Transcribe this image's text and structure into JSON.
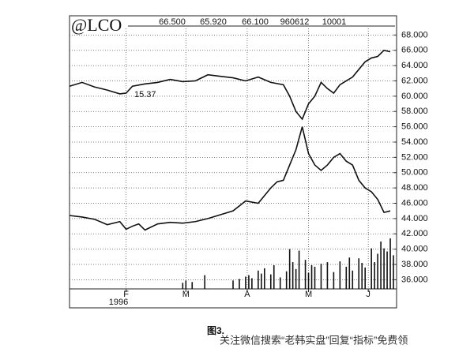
{
  "chart_data": {
    "type": "line",
    "title": "@LCO",
    "header": [
      "66.500",
      "65.920",
      "66.100",
      "960612",
      "10001"
    ],
    "annotation": "15.37",
    "year": "1996",
    "caption": "图3.",
    "watermark": "关注微信搜索“老韩实盘”回复“指标”免费领",
    "xlim": [
      0,
      104
    ],
    "ylim": [
      34.8,
      70.1
    ],
    "grid": true,
    "xticks": [
      {
        "value": 18,
        "label": "F"
      },
      {
        "value": 37,
        "label": "M"
      },
      {
        "value": 56.5,
        "label": "A"
      },
      {
        "value": 76,
        "label": "M"
      },
      {
        "value": 95,
        "label": "J"
      }
    ],
    "yticks": [
      {
        "value": 36,
        "label": "36.000"
      },
      {
        "value": 38,
        "label": "38.000"
      },
      {
        "value": 40,
        "label": "40.000"
      },
      {
        "value": 42,
        "label": "42.000"
      },
      {
        "value": 44,
        "label": "44.000"
      },
      {
        "value": 46,
        "label": "46.000"
      },
      {
        "value": 48,
        "label": "48.000"
      },
      {
        "value": 50,
        "label": "50.000"
      },
      {
        "value": 52,
        "label": "52.000"
      },
      {
        "value": 54,
        "label": "54.000"
      },
      {
        "value": 56,
        "label": "56.000"
      },
      {
        "value": 58,
        "label": "58.000"
      },
      {
        "value": 60,
        "label": "60.000"
      },
      {
        "value": 62,
        "label": "62.000"
      },
      {
        "value": 64,
        "label": "64.000"
      },
      {
        "value": 66,
        "label": "66.000"
      },
      {
        "value": 68,
        "label": "68.000"
      }
    ],
    "series": [
      {
        "type": "line",
        "color": "#111111",
        "x": [
          0,
          4,
          8,
          12,
          16,
          18,
          20,
          24,
          28,
          32,
          36,
          40,
          44,
          48,
          52,
          56,
          60,
          64,
          68,
          70,
          72,
          74,
          76,
          78,
          80,
          82,
          84,
          86,
          88,
          90,
          92,
          94,
          96,
          98,
          100,
          102
        ],
        "values": [
          61.3,
          61.8,
          61.2,
          60.8,
          60.3,
          60.4,
          61.3,
          61.6,
          61.8,
          62.2,
          61.9,
          62.0,
          62.8,
          62.6,
          62.4,
          62.0,
          62.5,
          61.8,
          61.5,
          60.0,
          58.0,
          57.0,
          59.0,
          60.0,
          61.8,
          61.0,
          60.4,
          61.5,
          62.0,
          62.5,
          63.5,
          64.5,
          65.0,
          65.2,
          66.0,
          65.8
        ]
      },
      {
        "type": "line",
        "color": "#111111",
        "x": [
          0,
          4,
          8,
          12,
          16,
          18,
          20,
          22,
          24,
          28,
          32,
          36,
          40,
          44,
          48,
          52,
          56,
          60,
          64,
          66,
          68,
          70,
          72,
          74,
          76,
          78,
          80,
          82,
          84,
          86,
          88,
          90,
          92,
          94,
          96,
          98,
          100,
          102
        ],
        "values": [
          44.4,
          44.2,
          43.9,
          43.2,
          43.6,
          42.6,
          43.0,
          43.3,
          42.5,
          43.3,
          43.5,
          43.4,
          43.6,
          44.0,
          44.5,
          45.0,
          46.3,
          46.0,
          48.0,
          48.8,
          49.0,
          51.0,
          53.0,
          56.0,
          52.5,
          51.0,
          50.3,
          51.0,
          52.0,
          52.5,
          51.5,
          51.0,
          49.0,
          48.0,
          47.5,
          46.5,
          44.8,
          45.0
        ]
      },
      {
        "type": "bar",
        "color": "#111111",
        "x": [
          36,
          37,
          39,
          43,
          52,
          54,
          56,
          57,
          58,
          60,
          61,
          62,
          64,
          65,
          67,
          69,
          70,
          71,
          72,
          73,
          75,
          76,
          77,
          78,
          80,
          82,
          84,
          86,
          88,
          89,
          90,
          92,
          93,
          94,
          96,
          97,
          98,
          99,
          100,
          101,
          102,
          103
        ],
        "values": [
          35.6,
          35.9,
          35.7,
          36.6,
          35.9,
          36.1,
          36.4,
          36.6,
          36.2,
          37.2,
          36.8,
          37.5,
          36.7,
          37.9,
          36.3,
          37.1,
          40.0,
          38.3,
          37.4,
          39.8,
          38.6,
          36.9,
          37.9,
          37.7,
          38.1,
          38.3,
          37.0,
          38.4,
          37.7,
          38.9,
          37.2,
          38.8,
          38.2,
          37.6,
          40.1,
          38.3,
          39.4,
          41.0,
          40.1,
          39.7,
          41.4,
          39.2
        ]
      }
    ]
  }
}
